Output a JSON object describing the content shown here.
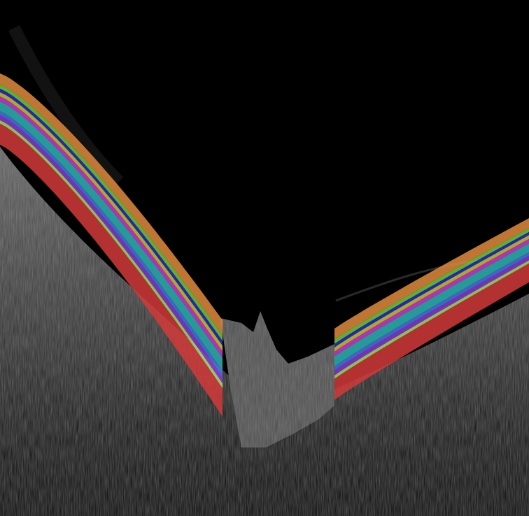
{
  "image": {
    "kind": "oct-bscan-optic-nerve-head",
    "background": "#000000",
    "tissue_gray": "#5a5a5a",
    "layers": [
      {
        "name": "nerve-fiber-layer",
        "color": "#e08a3c"
      },
      {
        "name": "ganglion-cell-layer",
        "color": "#6fcf3a"
      },
      {
        "name": "inner-plexiform-layer",
        "color": "#2a2ad8"
      },
      {
        "name": "inner-nuclear-layer",
        "color": "#c8c832"
      },
      {
        "name": "outer-plexiform-layer",
        "color": "#d23ad2"
      },
      {
        "name": "outer-nuclear-layer",
        "color": "#2fb4b4"
      },
      {
        "name": "photoreceptor-layer",
        "color": "#4a78e0"
      },
      {
        "name": "ellipsoid-zone",
        "color": "#8a3ad8"
      },
      {
        "name": "rpe-layer",
        "color": "#a8e068"
      },
      {
        "name": "choroid",
        "color": "#d23a3a"
      }
    ]
  }
}
